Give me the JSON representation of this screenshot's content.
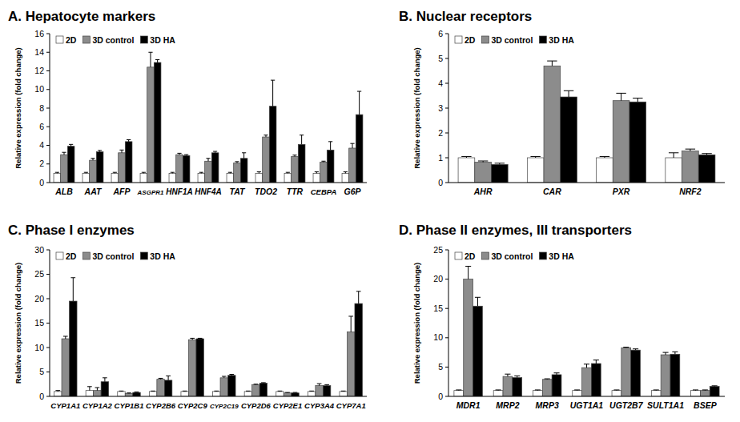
{
  "chart_data": [
    {
      "type": "bar",
      "title": "A. Hepatocyte markers",
      "y_label": "Relative expression (fold change)",
      "categories": [
        "ALB",
        "AAT",
        "AFP",
        "ASGPR1",
        "HNF1A",
        "HNF4A",
        "TAT",
        "TDO2",
        "TTR",
        "CEBPA",
        "G6P"
      ],
      "series": [
        {
          "name": "2D",
          "color": "#ffffff",
          "values": [
            1,
            1,
            1,
            1,
            1,
            1,
            1,
            1,
            1,
            1,
            1
          ],
          "errors": [
            0.1,
            0.1,
            0.1,
            0.1,
            0.1,
            0.1,
            0.1,
            0.15,
            0.1,
            0.15,
            0.15
          ]
        },
        {
          "name": "3D control",
          "color": "#8c8c8c",
          "values": [
            3.0,
            2.4,
            3.2,
            12.4,
            3.0,
            2.3,
            2.1,
            4.9,
            2.8,
            2.2,
            3.7
          ],
          "errors": [
            0.25,
            0.2,
            0.3,
            1.6,
            0.15,
            0.3,
            0.15,
            0.2,
            0.15,
            0.1,
            0.5
          ]
        },
        {
          "name": "3D HA",
          "color": "#000000",
          "values": [
            3.9,
            3.3,
            4.4,
            12.9,
            2.9,
            3.2,
            2.6,
            8.2,
            4.1,
            3.5,
            7.3
          ],
          "errors": [
            0.2,
            0.15,
            0.2,
            0.3,
            0.1,
            0.15,
            0.6,
            2.8,
            1.0,
            0.9,
            2.5
          ]
        }
      ],
      "ylim": [
        0,
        16
      ],
      "yticks": [
        0,
        2,
        4,
        6,
        8,
        10,
        12,
        14,
        16
      ],
      "legend": "top-left",
      "grid": false
    },
    {
      "type": "bar",
      "title": "B. Nuclear receptors",
      "y_label": "Relative expression (fold change)",
      "categories": [
        "AHR",
        "CAR",
        "PXR",
        "NRF2"
      ],
      "series": [
        {
          "name": "2D",
          "color": "#ffffff",
          "values": [
            1,
            1,
            1,
            1
          ],
          "errors": [
            0.05,
            0.05,
            0.05,
            0.2
          ]
        },
        {
          "name": "3D control",
          "color": "#8c8c8c",
          "values": [
            0.82,
            4.7,
            3.3,
            1.27
          ],
          "errors": [
            0.05,
            0.2,
            0.3,
            0.08
          ]
        },
        {
          "name": "3D HA",
          "color": "#000000",
          "values": [
            0.73,
            3.45,
            3.25,
            1.12
          ],
          "errors": [
            0.05,
            0.25,
            0.15,
            0.05
          ]
        }
      ],
      "ylim": [
        0,
        6
      ],
      "yticks": [
        0,
        1,
        2,
        3,
        4,
        5,
        6
      ],
      "legend": "top-left",
      "grid": false
    },
    {
      "type": "bar",
      "title": "C. Phase I enzymes",
      "y_label": "Relative expression (fold change)",
      "categories": [
        "CYP1A1",
        "CYP1A2",
        "CYP1B1",
        "CYP2B6",
        "CYP2C9",
        "CYP2C19",
        "CYP2D6",
        "CYP2E1",
        "CYP3A4",
        "CYP7A1"
      ],
      "series": [
        {
          "name": "2D",
          "color": "#ffffff",
          "values": [
            1,
            1.2,
            1,
            1,
            1,
            1,
            1,
            1,
            1,
            1
          ],
          "errors": [
            0.2,
            0.8,
            0.1,
            0.1,
            0.1,
            0.1,
            0.1,
            0.1,
            0.1,
            0.1
          ]
        },
        {
          "name": "3D control",
          "color": "#8c8c8c",
          "values": [
            11.8,
            1.2,
            0.6,
            3.5,
            11.6,
            3.8,
            2.4,
            0.7,
            2.2,
            13.2
          ],
          "errors": [
            0.5,
            0.6,
            0.1,
            0.2,
            0.3,
            0.3,
            0.1,
            0.1,
            0.4,
            3.2
          ]
        },
        {
          "name": "3D HA",
          "color": "#000000",
          "values": [
            19.5,
            3.0,
            0.8,
            3.3,
            11.8,
            4.3,
            2.7,
            0.7,
            2.2,
            19.0
          ],
          "errors": [
            4.8,
            0.8,
            0.1,
            0.9,
            0.1,
            0.2,
            0.1,
            0.1,
            0.2,
            2.5
          ]
        }
      ],
      "ylim": [
        0,
        30
      ],
      "yticks": [
        0,
        5,
        10,
        15,
        20,
        25,
        30
      ],
      "legend": "top-left",
      "grid": false
    },
    {
      "type": "bar",
      "title": "D. Phase II enzymes, III transporters",
      "y_label": "Relative expression (fold change)",
      "categories": [
        "MDR1",
        "MRP2",
        "MRP3",
        "UGT1A1",
        "UGT2B7",
        "SULT1A1",
        "BSEP"
      ],
      "series": [
        {
          "name": "2D",
          "color": "#ffffff",
          "values": [
            1,
            1,
            1,
            1,
            1,
            1,
            1
          ],
          "errors": [
            0.1,
            0.1,
            0.1,
            0.1,
            0.1,
            0.1,
            0.1
          ]
        },
        {
          "name": "3D control",
          "color": "#8c8c8c",
          "values": [
            20,
            3.4,
            2.9,
            4.9,
            8.3,
            7.1,
            1.0
          ],
          "errors": [
            2.2,
            0.4,
            0.1,
            0.6,
            0.1,
            0.4,
            0.1
          ]
        },
        {
          "name": "3D HA",
          "color": "#000000",
          "values": [
            15.4,
            3.2,
            3.7,
            5.6,
            7.9,
            7.2,
            1.7
          ],
          "errors": [
            1.5,
            0.3,
            0.3,
            0.6,
            0.2,
            0.4,
            0.1
          ]
        }
      ],
      "ylim": [
        0,
        25
      ],
      "yticks": [
        0,
        5,
        10,
        15,
        20,
        25
      ],
      "legend": "top-left",
      "grid": false
    }
  ]
}
